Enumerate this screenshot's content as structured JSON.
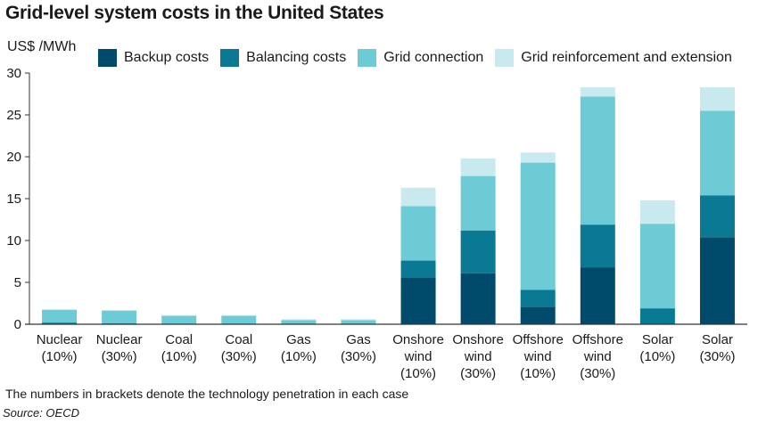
{
  "title": "Grid-level system costs in the United States",
  "y_unit": "US$ /MWh",
  "footnote": "The numbers in brackets denote the technology penetration in each case",
  "source": "Source: OECD",
  "colors": {
    "backup": "#004b6b",
    "balancing": "#0a7a94",
    "connection": "#6ccbd5",
    "reinforcement": "#c8eaee",
    "axis": "#333333"
  },
  "chart_data": {
    "type": "bar",
    "stacked": true,
    "title": "Grid-level system costs in the United States",
    "ylabel": "US$ /MWh",
    "ylim": [
      0,
      30
    ],
    "yticks": [
      0,
      5,
      10,
      15,
      20,
      25,
      30
    ],
    "grid": false,
    "legend_position": "top",
    "categories": [
      [
        "Nuclear",
        "(10%)"
      ],
      [
        "Nuclear",
        "(30%)"
      ],
      [
        "Coal",
        "(10%)"
      ],
      [
        "Coal",
        "(30%)"
      ],
      [
        "Gas",
        "(10%)"
      ],
      [
        "Gas",
        "(30%)"
      ],
      [
        "Onshore",
        "wind",
        "(10%)"
      ],
      [
        "Onshore",
        "wind",
        "(30%)"
      ],
      [
        "Offshore",
        "wind",
        "(10%)"
      ],
      [
        "Offshore",
        "wind",
        "(30%)"
      ],
      [
        "Solar",
        "(10%)"
      ],
      [
        "Solar",
        "(30%)"
      ]
    ],
    "series": [
      {
        "name": "Backup costs",
        "color": "#004b6b",
        "values": [
          0,
          0,
          0,
          0,
          0,
          0,
          5.6,
          6.1,
          2.1,
          6.8,
          0,
          10.4
        ]
      },
      {
        "name": "Balancing costs",
        "color": "#0a7a94",
        "values": [
          0.2,
          0.1,
          0,
          0,
          0,
          0,
          2.0,
          5.1,
          2.0,
          5.1,
          1.9,
          5.0
        ]
      },
      {
        "name": "Grid connection",
        "color": "#6ccbd5",
        "values": [
          1.5,
          1.5,
          1.0,
          1.0,
          0.5,
          0.5,
          6.5,
          6.5,
          15.2,
          15.3,
          10.1,
          10.1
        ]
      },
      {
        "name": "Grid reinforcement and extension",
        "color": "#c8eaee",
        "values": [
          0.1,
          0.1,
          0.1,
          0.1,
          0.1,
          0.1,
          2.2,
          2.1,
          1.2,
          1.1,
          2.8,
          2.8
        ]
      }
    ]
  }
}
